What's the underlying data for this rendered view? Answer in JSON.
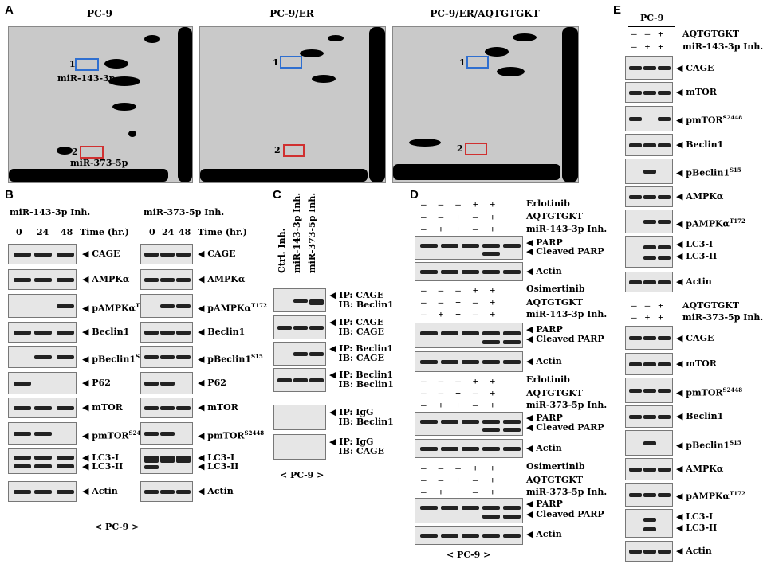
{
  "panel_letters": {
    "a": "A",
    "b": "B",
    "c": "C",
    "d": "D",
    "e": "E"
  },
  "panel_a": {
    "titles": [
      "PC-9",
      "PC-9/ER",
      "PC-9/ER/AQTGTGKT"
    ],
    "box1_num": "1",
    "box2_num": "2",
    "mir143": "miR-143-3p",
    "mir373": "miR-373-5p"
  },
  "panel_b": {
    "left_title": "miR-143-3p Inh.",
    "right_title": "miR-373-5p Inh.",
    "times": [
      "0",
      "24",
      "48"
    ],
    "time_label": "Time (hr.)",
    "labels": [
      "CAGE",
      "AMPKα",
      "pAMPKα",
      "Beclin1",
      "pBeclin1",
      "P62",
      "mTOR",
      "pmTOR",
      "LC3-I",
      "LC3-II",
      "Actin"
    ],
    "sup_t172": "T172",
    "sup_s15": "S15",
    "sup_s2448": "S2448",
    "footer": "< PC-9 >"
  },
  "panel_c": {
    "lanes": [
      "Ctrl. Inh.",
      "miR-143-3p Inh.",
      "miR-373-5p Inh."
    ],
    "ip_ib": [
      [
        "IP: CAGE",
        "IB: Beclin1"
      ],
      [
        "IP: CAGE",
        "IB: CAGE"
      ],
      [
        "IP: Beclin1",
        "IB: CAGE"
      ],
      [
        "IP: Beclin1",
        "IB: Beclin1"
      ],
      [
        "IP: IgG",
        "IB: Beclin1"
      ],
      [
        "IP: IgG",
        "IB: CAGE"
      ]
    ],
    "footer": "< PC-9 >"
  },
  "panel_d": {
    "erlotinib": "Erlotinib",
    "osimertinib": "Osimertinib",
    "aqt": "AQTGTGKT",
    "inh143": "miR-143-3p Inh.",
    "inh373": "miR-373-5p Inh.",
    "parp": "PARP",
    "cleaved": "Cleaved PARP",
    "actin": "Actin",
    "row_drug": [
      "–",
      "–",
      "–",
      "+",
      "+"
    ],
    "row_aqt": [
      "–",
      "–",
      "+",
      "–",
      "+"
    ],
    "row_inh": [
      "–",
      "+",
      "+",
      "–",
      "+"
    ],
    "row_inh4": [
      "–",
      "+",
      "+",
      "–",
      "+"
    ],
    "footer": "< PC-9 >"
  },
  "panel_e": {
    "title": "PC-9",
    "aqt": "AQTGTGKT",
    "inh143": "miR-143-3p Inh.",
    "inh373": "miR-373-5p Inh.",
    "row_aqt": [
      "–",
      "–",
      "+"
    ],
    "row_inh": [
      "–",
      "+",
      "+"
    ],
    "labels_top": [
      "CAGE",
      "mTOR",
      "pmTOR",
      "Beclin1",
      "pBeclin1",
      "AMPKα",
      "pAMPKα",
      "LC3-I",
      "LC3-II",
      "Actin"
    ],
    "labels_bot": [
      "CAGE",
      "mTOR",
      "pmTOR",
      "Beclin1",
      "pBeclin1",
      "AMPKα",
      "pAMPKα",
      "LC3-I",
      "LC3-II",
      "Actin"
    ]
  }
}
